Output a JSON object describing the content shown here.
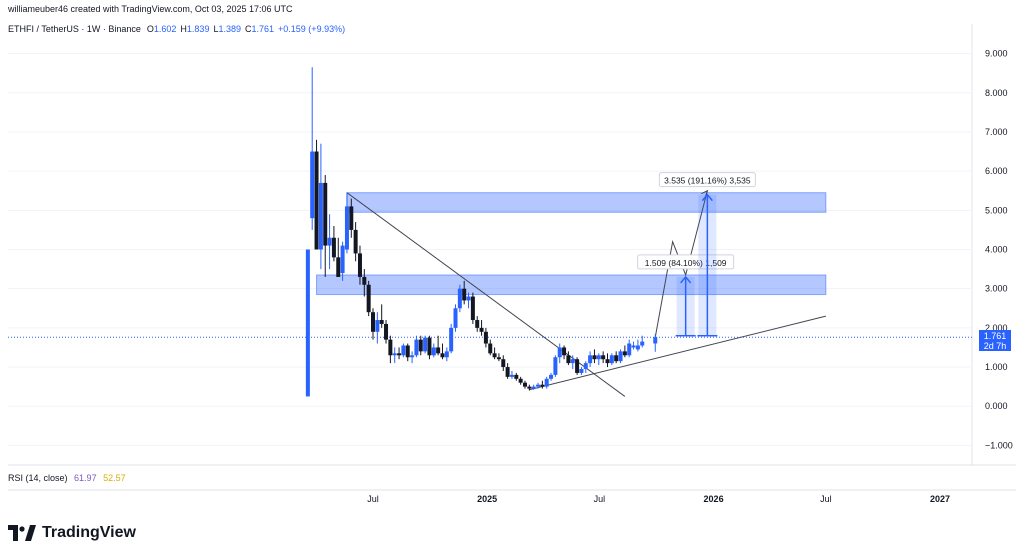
{
  "header": {
    "created_by": "williameuber46 created with TradingView.com, Oct 03, 2025 17:06 UTC",
    "symbol": "ETHFI / TetherUS · 1W · Binance",
    "open_label": "O",
    "open": "1.602",
    "high_label": "H",
    "high": "1.839",
    "low_label": "L",
    "low": "1.389",
    "close_label": "C",
    "close": "1.761",
    "change": "+0.159 (+9.93%)"
  },
  "rsi": {
    "label": "RSI (14, close)",
    "value1": "61.97",
    "value2": "52.57"
  },
  "price_badge": {
    "price": "1.761",
    "countdown": "2d 7h"
  },
  "brand": {
    "name": "TradingView"
  },
  "colors": {
    "up": "#2962ff",
    "down": "#131722",
    "zone": "#2962ff",
    "accent": "#2962ff"
  },
  "chart_data": {
    "type": "candlestick",
    "ylim": [
      -1.5,
      9.5
    ],
    "y_ticks": [
      "9.000",
      "8.000",
      "7.000",
      "6.000",
      "5.000",
      "4.000",
      "3.000",
      "2.000",
      "1.000",
      "0.000",
      "−1.000"
    ],
    "y_tick_values": [
      9,
      8,
      7,
      6,
      5,
      4,
      3,
      2,
      1,
      0,
      -1
    ],
    "x_ticks": [
      "Jul",
      "2025",
      "Jul",
      "2026",
      "Jul",
      "2027"
    ],
    "x_tick_dates": [
      "2024-07-01",
      "2025-01-01",
      "2025-07-01",
      "2026-01-01",
      "2026-07-01",
      "2027-01-01"
    ],
    "candles": [
      {
        "date": "2024-03-18",
        "o": 0.25,
        "h": 4.0,
        "l": 0.25,
        "c": 4.0
      },
      {
        "date": "2024-03-25",
        "o": 4.8,
        "h": 8.65,
        "l": 4.5,
        "c": 6.5
      },
      {
        "date": "2024-04-01",
        "o": 6.5,
        "h": 6.8,
        "l": 4.0,
        "c": 4.0
      },
      {
        "date": "2024-04-08",
        "o": 4.0,
        "h": 6.7,
        "l": 3.5,
        "c": 5.7
      },
      {
        "date": "2024-04-15",
        "o": 5.7,
        "h": 5.9,
        "l": 3.3,
        "c": 4.1
      },
      {
        "date": "2024-04-22",
        "o": 4.1,
        "h": 4.9,
        "l": 3.5,
        "c": 4.3
      },
      {
        "date": "2024-04-29",
        "o": 4.3,
        "h": 4.6,
        "l": 3.7,
        "c": 3.8
      },
      {
        "date": "2024-05-06",
        "o": 3.8,
        "h": 4.3,
        "l": 3.3,
        "c": 3.3
      },
      {
        "date": "2024-05-13",
        "o": 3.4,
        "h": 4.2,
        "l": 3.2,
        "c": 4.1
      },
      {
        "date": "2024-05-20",
        "o": 4.0,
        "h": 5.45,
        "l": 3.9,
        "c": 5.1
      },
      {
        "date": "2024-05-27",
        "o": 5.1,
        "h": 5.3,
        "l": 4.3,
        "c": 4.5
      },
      {
        "date": "2024-06-03",
        "o": 4.5,
        "h": 4.7,
        "l": 3.7,
        "c": 3.9
      },
      {
        "date": "2024-06-10",
        "o": 3.9,
        "h": 4.1,
        "l": 3.1,
        "c": 3.3
      },
      {
        "date": "2024-06-17",
        "o": 3.3,
        "h": 3.5,
        "l": 2.8,
        "c": 3.1
      },
      {
        "date": "2024-06-24",
        "o": 3.1,
        "h": 3.2,
        "l": 2.3,
        "c": 2.4
      },
      {
        "date": "2024-07-01",
        "o": 2.4,
        "h": 2.5,
        "l": 1.7,
        "c": 1.9
      },
      {
        "date": "2024-07-08",
        "o": 1.9,
        "h": 2.4,
        "l": 1.6,
        "c": 2.2
      },
      {
        "date": "2024-07-15",
        "o": 2.2,
        "h": 2.6,
        "l": 2.0,
        "c": 2.1
      },
      {
        "date": "2024-07-22",
        "o": 2.1,
        "h": 2.2,
        "l": 1.6,
        "c": 1.7
      },
      {
        "date": "2024-07-29",
        "o": 1.7,
        "h": 1.8,
        "l": 1.1,
        "c": 1.3
      },
      {
        "date": "2024-08-05",
        "o": 1.3,
        "h": 1.5,
        "l": 1.1,
        "c": 1.35
      },
      {
        "date": "2024-08-12",
        "o": 1.35,
        "h": 1.5,
        "l": 1.2,
        "c": 1.3
      },
      {
        "date": "2024-08-19",
        "o": 1.3,
        "h": 1.6,
        "l": 1.25,
        "c": 1.55
      },
      {
        "date": "2024-08-26",
        "o": 1.55,
        "h": 1.6,
        "l": 1.15,
        "c": 1.25
      },
      {
        "date": "2024-09-02",
        "o": 1.25,
        "h": 1.4,
        "l": 1.1,
        "c": 1.3
      },
      {
        "date": "2024-09-09",
        "o": 1.3,
        "h": 1.8,
        "l": 1.25,
        "c": 1.7
      },
      {
        "date": "2024-09-16",
        "o": 1.7,
        "h": 1.8,
        "l": 1.3,
        "c": 1.4
      },
      {
        "date": "2024-09-23",
        "o": 1.4,
        "h": 1.8,
        "l": 1.35,
        "c": 1.75
      },
      {
        "date": "2024-09-30",
        "o": 1.75,
        "h": 1.8,
        "l": 1.2,
        "c": 1.3
      },
      {
        "date": "2024-10-07",
        "o": 1.3,
        "h": 1.6,
        "l": 1.25,
        "c": 1.5
      },
      {
        "date": "2024-10-14",
        "o": 1.5,
        "h": 1.8,
        "l": 1.3,
        "c": 1.35
      },
      {
        "date": "2024-10-21",
        "o": 1.35,
        "h": 1.6,
        "l": 1.2,
        "c": 1.25
      },
      {
        "date": "2024-10-28",
        "o": 1.25,
        "h": 1.5,
        "l": 1.15,
        "c": 1.4
      },
      {
        "date": "2024-11-04",
        "o": 1.4,
        "h": 2.1,
        "l": 1.35,
        "c": 2.0
      },
      {
        "date": "2024-11-11",
        "o": 2.0,
        "h": 2.6,
        "l": 1.9,
        "c": 2.5
      },
      {
        "date": "2024-11-18",
        "o": 2.5,
        "h": 3.1,
        "l": 2.4,
        "c": 3.0
      },
      {
        "date": "2024-11-25",
        "o": 3.0,
        "h": 3.2,
        "l": 2.6,
        "c": 2.7
      },
      {
        "date": "2024-12-02",
        "o": 2.7,
        "h": 2.9,
        "l": 2.5,
        "c": 2.8
      },
      {
        "date": "2024-12-09",
        "o": 2.8,
        "h": 2.9,
        "l": 2.1,
        "c": 2.2
      },
      {
        "date": "2024-12-16",
        "o": 2.2,
        "h": 2.3,
        "l": 1.9,
        "c": 2.0
      },
      {
        "date": "2024-12-23",
        "o": 2.0,
        "h": 2.2,
        "l": 1.8,
        "c": 1.9
      },
      {
        "date": "2024-12-30",
        "o": 1.9,
        "h": 2.0,
        "l": 1.5,
        "c": 1.6
      },
      {
        "date": "2025-01-06",
        "o": 1.6,
        "h": 1.7,
        "l": 1.3,
        "c": 1.35
      },
      {
        "date": "2025-01-13",
        "o": 1.35,
        "h": 1.5,
        "l": 1.2,
        "c": 1.25
      },
      {
        "date": "2025-01-20",
        "o": 1.25,
        "h": 1.35,
        "l": 1.15,
        "c": 1.2
      },
      {
        "date": "2025-01-27",
        "o": 1.2,
        "h": 1.3,
        "l": 0.9,
        "c": 1.0
      },
      {
        "date": "2025-02-03",
        "o": 1.0,
        "h": 1.1,
        "l": 0.7,
        "c": 0.75
      },
      {
        "date": "2025-02-10",
        "o": 0.75,
        "h": 0.9,
        "l": 0.7,
        "c": 0.8
      },
      {
        "date": "2025-02-17",
        "o": 0.8,
        "h": 0.85,
        "l": 0.65,
        "c": 0.7
      },
      {
        "date": "2025-02-24",
        "o": 0.7,
        "h": 0.75,
        "l": 0.55,
        "c": 0.6
      },
      {
        "date": "2025-03-03",
        "o": 0.6,
        "h": 0.65,
        "l": 0.45,
        "c": 0.5
      },
      {
        "date": "2025-03-10",
        "o": 0.5,
        "h": 0.55,
        "l": 0.4,
        "c": 0.45
      },
      {
        "date": "2025-03-17",
        "o": 0.45,
        "h": 0.55,
        "l": 0.42,
        "c": 0.5
      },
      {
        "date": "2025-03-24",
        "o": 0.5,
        "h": 0.6,
        "l": 0.45,
        "c": 0.55
      },
      {
        "date": "2025-03-31",
        "o": 0.55,
        "h": 0.65,
        "l": 0.45,
        "c": 0.5
      },
      {
        "date": "2025-04-07",
        "o": 0.5,
        "h": 0.75,
        "l": 0.45,
        "c": 0.7
      },
      {
        "date": "2025-04-14",
        "o": 0.7,
        "h": 0.85,
        "l": 0.65,
        "c": 0.8
      },
      {
        "date": "2025-04-21",
        "o": 0.8,
        "h": 1.3,
        "l": 0.75,
        "c": 1.25
      },
      {
        "date": "2025-04-28",
        "o": 1.25,
        "h": 1.6,
        "l": 1.1,
        "c": 1.5
      },
      {
        "date": "2025-05-05",
        "o": 1.5,
        "h": 1.55,
        "l": 1.2,
        "c": 1.3
      },
      {
        "date": "2025-05-12",
        "o": 1.3,
        "h": 1.4,
        "l": 1.05,
        "c": 1.1
      },
      {
        "date": "2025-05-19",
        "o": 1.1,
        "h": 1.3,
        "l": 0.95,
        "c": 1.2
      },
      {
        "date": "2025-05-26",
        "o": 1.2,
        "h": 1.25,
        "l": 0.8,
        "c": 0.85
      },
      {
        "date": "2025-06-02",
        "o": 0.85,
        "h": 1.0,
        "l": 0.8,
        "c": 0.95
      },
      {
        "date": "2025-06-09",
        "o": 0.95,
        "h": 1.15,
        "l": 0.85,
        "c": 1.1
      },
      {
        "date": "2025-06-16",
        "o": 1.1,
        "h": 1.4,
        "l": 1.0,
        "c": 1.3
      },
      {
        "date": "2025-06-23",
        "o": 1.3,
        "h": 1.45,
        "l": 1.1,
        "c": 1.2
      },
      {
        "date": "2025-06-30",
        "o": 1.2,
        "h": 1.35,
        "l": 1.05,
        "c": 1.3
      },
      {
        "date": "2025-07-07",
        "o": 1.3,
        "h": 1.4,
        "l": 1.1,
        "c": 1.2
      },
      {
        "date": "2025-07-14",
        "o": 1.2,
        "h": 1.35,
        "l": 1.0,
        "c": 1.1
      },
      {
        "date": "2025-07-21",
        "o": 1.1,
        "h": 1.35,
        "l": 1.05,
        "c": 1.3
      },
      {
        "date": "2025-07-28",
        "o": 1.3,
        "h": 1.4,
        "l": 1.1,
        "c": 1.15
      },
      {
        "date": "2025-08-04",
        "o": 1.15,
        "h": 1.45,
        "l": 1.1,
        "c": 1.4
      },
      {
        "date": "2025-08-11",
        "o": 1.4,
        "h": 1.55,
        "l": 1.25,
        "c": 1.3
      },
      {
        "date": "2025-08-18",
        "o": 1.3,
        "h": 1.7,
        "l": 1.25,
        "c": 1.6
      },
      {
        "date": "2025-08-25",
        "o": 1.5,
        "h": 1.65,
        "l": 1.45,
        "c": 1.55
      },
      {
        "date": "2025-09-01",
        "o": 1.45,
        "h": 1.7,
        "l": 1.4,
        "c": 1.55
      },
      {
        "date": "2025-09-08",
        "o": 1.55,
        "h": 1.8,
        "l": 1.5,
        "c": 1.65
      },
      {
        "date": "2025-09-29",
        "o": 1.602,
        "h": 1.839,
        "l": 1.389,
        "c": 1.761
      }
    ],
    "zones": [
      {
        "from_date": "2024-04-01",
        "to_date": "2026-07-01",
        "low": 2.85,
        "high": 3.35
      },
      {
        "from_date": "2024-05-20",
        "to_date": "2026-07-01",
        "low": 4.95,
        "high": 5.45
      }
    ],
    "trendlines": [
      {
        "from": {
          "date": "2024-05-20",
          "value": 5.45
        },
        "to": {
          "date": "2025-08-11",
          "value": 0.25
        }
      },
      {
        "from": {
          "date": "2025-03-10",
          "value": 0.42
        },
        "to": {
          "date": "2026-07-01",
          "value": 2.3
        }
      }
    ],
    "projection_path": [
      {
        "date": "2025-09-29",
        "value": 1.76
      },
      {
        "date": "2025-10-27",
        "value": 4.2
      },
      {
        "date": "2025-11-17",
        "value": 3.35
      },
      {
        "date": "2025-12-22",
        "value": 5.5
      }
    ],
    "measurements": [
      {
        "label": "1.509 (84.10%) 1,509",
        "date": "2025-11-17",
        "from": 1.8,
        "to": 3.3
      },
      {
        "label": "3.535 (191.16%) 3,535",
        "date": "2025-12-22",
        "from": 1.8,
        "to": 5.4
      }
    ]
  }
}
